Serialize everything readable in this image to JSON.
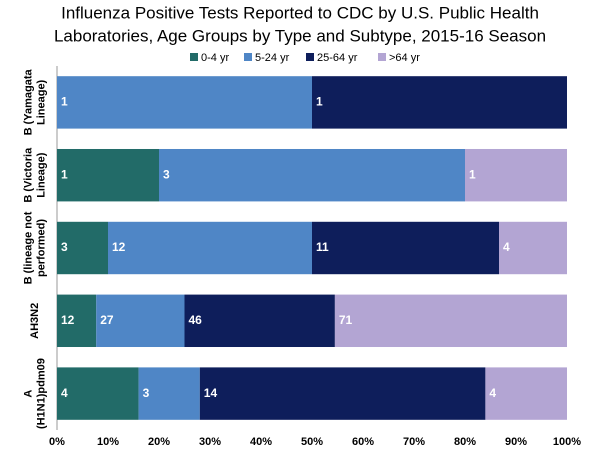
{
  "chart_data": {
    "type": "bar",
    "orientation": "horizontal",
    "stacked": "percent",
    "title": "Influenza Positive Tests Reported to CDC by U.S. Public Health Laboratories, Age Groups by Type and Subtype, 2015-16 Season",
    "categories": [
      "B (Yamagata Lineage)",
      "B (Victoria Lineage)",
      "B (lineage not performed)",
      "AH3N2",
      "A (H1N1)pdm09"
    ],
    "series": [
      {
        "name": "0-4 yr",
        "color": "#226b68",
        "values": [
          0,
          1,
          3,
          12,
          4
        ]
      },
      {
        "name": "5-24 yr",
        "color": "#4f86c6",
        "values": [
          1,
          3,
          12,
          27,
          3
        ]
      },
      {
        "name": "25-64 yr",
        "color": "#0e1e5b",
        "values": [
          1,
          0,
          11,
          46,
          14
        ]
      },
      {
        "name": ">64 yr",
        "color": "#b3a5d3",
        "values": [
          0,
          1,
          4,
          71,
          4
        ]
      }
    ],
    "xlim": [
      0,
      100
    ],
    "xticks": [
      {
        "value": 0,
        "label": "0%"
      },
      {
        "value": 10,
        "label": "10%"
      },
      {
        "value": 20,
        "label": "20%"
      },
      {
        "value": 30,
        "label": "30%"
      },
      {
        "value": 40,
        "label": "40%"
      },
      {
        "value": 50,
        "label": "50%"
      },
      {
        "value": 60,
        "label": "60%"
      },
      {
        "value": 70,
        "label": "70%"
      },
      {
        "value": 80,
        "label": "80%"
      },
      {
        "value": 90,
        "label": "90%"
      },
      {
        "value": 100,
        "label": "100%"
      }
    ],
    "legend": "top",
    "grid": false
  }
}
